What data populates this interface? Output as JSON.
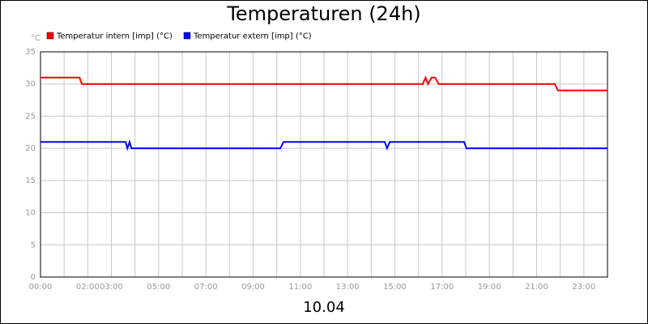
{
  "chart_data": {
    "type": "line",
    "title": "Temperaturen (24h)",
    "y_unit": "°C",
    "x_label": "10.04",
    "xlim": [
      0,
      24
    ],
    "ylim": [
      0,
      35
    ],
    "yticks": [
      0,
      5,
      10,
      15,
      20,
      25,
      30,
      35
    ],
    "xticks": [
      {
        "value": 0,
        "label": "00:00"
      },
      {
        "value": 2,
        "label": "02:00"
      },
      {
        "value": 3,
        "label": "03:00"
      },
      {
        "value": 5,
        "label": "05:00"
      },
      {
        "value": 7,
        "label": "07:00"
      },
      {
        "value": 9,
        "label": "09:00"
      },
      {
        "value": 11,
        "label": "11:00"
      },
      {
        "value": 13,
        "label": "13:00"
      },
      {
        "value": 15,
        "label": "15:00"
      },
      {
        "value": 17,
        "label": "17:00"
      },
      {
        "value": 19,
        "label": "19:00"
      },
      {
        "value": 21,
        "label": "21:00"
      },
      {
        "value": 23,
        "label": "23:00"
      }
    ],
    "x_minor_ticks": [
      1,
      4,
      6,
      8,
      10,
      12,
      14,
      16,
      18,
      20,
      22,
      24
    ],
    "grid": true,
    "series": [
      {
        "name": "Temperatur intern [imp] (°C)",
        "color": "#ff0000",
        "x": [
          0,
          1.65,
          1.75,
          16.18,
          16.3,
          16.4,
          16.55,
          16.7,
          16.85,
          21.77,
          21.9,
          24
        ],
        "values": [
          31,
          31,
          30,
          30,
          31,
          30,
          31,
          31,
          30,
          30,
          29,
          29
        ]
      },
      {
        "name": "Temperatur extern [imp] (°C)",
        "color": "#0000ff",
        "x": [
          0,
          3.6,
          3.68,
          3.77,
          3.85,
          10.15,
          10.29,
          14.57,
          14.67,
          14.78,
          17.93,
          18.03,
          24
        ],
        "values": [
          21,
          21,
          20,
          21,
          20,
          20,
          21,
          21,
          20,
          21,
          21,
          20,
          20
        ]
      }
    ]
  }
}
